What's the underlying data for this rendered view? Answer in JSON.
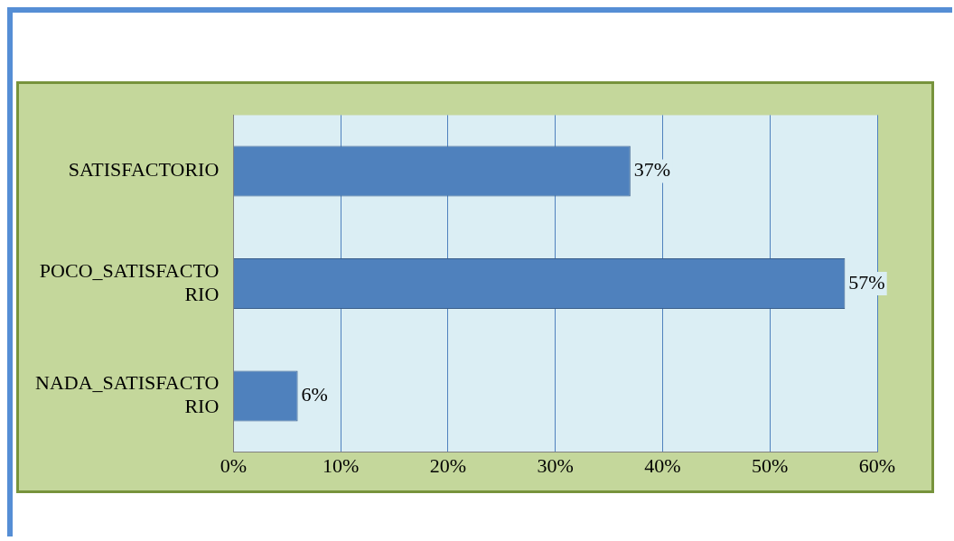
{
  "chart_data": {
    "type": "bar",
    "orientation": "horizontal",
    "categories": [
      "SATISFACTORIO",
      "POCO_SATISFACTORIO",
      "NADA_SATISFACTORIO"
    ],
    "values": [
      37,
      57,
      6
    ],
    "color": "#4f81bd",
    "value_labels": [
      "37%",
      "57%",
      "6%"
    ],
    "xlim": [
      0,
      60
    ],
    "xticks": [
      {
        "value": 0,
        "label": "0%"
      },
      {
        "value": 10,
        "label": "10%"
      },
      {
        "value": 20,
        "label": "20%"
      },
      {
        "value": 30,
        "label": "30%"
      },
      {
        "value": 40,
        "label": "40%"
      },
      {
        "value": 50,
        "label": "50%"
      },
      {
        "value": 60,
        "label": "60%"
      }
    ],
    "grid": "x",
    "legend": false
  }
}
